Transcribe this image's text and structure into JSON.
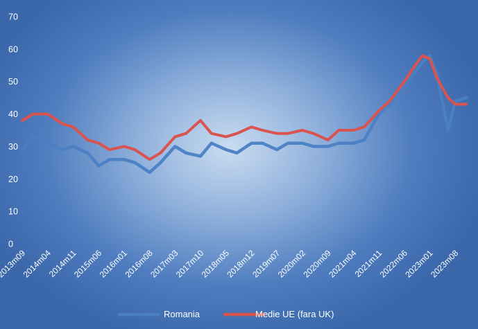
{
  "chart_data": {
    "type": "line",
    "title": "",
    "xlabel": "",
    "ylabel": "",
    "ylim": [
      0,
      70
    ],
    "yticks": [
      0,
      10,
      20,
      30,
      40,
      50,
      60,
      70
    ],
    "grid": false,
    "legend_position": "bottom",
    "x_tick_labels": [
      "2013m09",
      "2014m04",
      "2014m11",
      "2015m06",
      "2016m01",
      "2016m08",
      "2017m03",
      "2017m10",
      "2018m05",
      "2018m12",
      "2019m07",
      "2020m02",
      "2020m09",
      "2021m04",
      "2021m11",
      "2022m06",
      "2023m01",
      "2023m08"
    ],
    "x": [
      "2013m09",
      "2013m12",
      "2014m04",
      "2014m08",
      "2014m11",
      "2015m03",
      "2015m06",
      "2015m09",
      "2016m01",
      "2016m04",
      "2016m08",
      "2016m11",
      "2017m03",
      "2017m06",
      "2017m10",
      "2018m01",
      "2018m05",
      "2018m08",
      "2018m12",
      "2019m03",
      "2019m07",
      "2019m10",
      "2020m02",
      "2020m05",
      "2020m09",
      "2020m12",
      "2021m04",
      "2021m07",
      "2021m11",
      "2022m02",
      "2022m06",
      "2022m09",
      "2022m11",
      "2023m01",
      "2023m03",
      "2023m06",
      "2023m08",
      "2023m11"
    ],
    "series": [
      {
        "name": "Romania",
        "color": "#4a7fc4",
        "values": [
          29,
          33,
          31,
          29,
          30,
          28,
          24,
          26,
          26,
          25,
          22,
          25,
          30,
          28,
          27,
          31,
          29,
          28,
          31,
          31,
          29,
          31,
          31,
          30,
          30,
          31,
          31,
          32,
          40,
          43,
          49,
          53,
          56,
          58,
          52,
          35,
          44,
          45
        ]
      },
      {
        "name": "Medie UE (fara UK)",
        "color": "#d9534f",
        "values": [
          38,
          40,
          40,
          37,
          36,
          32,
          31,
          29,
          30,
          29,
          26,
          28,
          33,
          34,
          38,
          34,
          33,
          34,
          36,
          35,
          34,
          34,
          35,
          34,
          32,
          35,
          35,
          36,
          41,
          44,
          50,
          55,
          58,
          57,
          51,
          45,
          43,
          43
        ]
      }
    ]
  }
}
